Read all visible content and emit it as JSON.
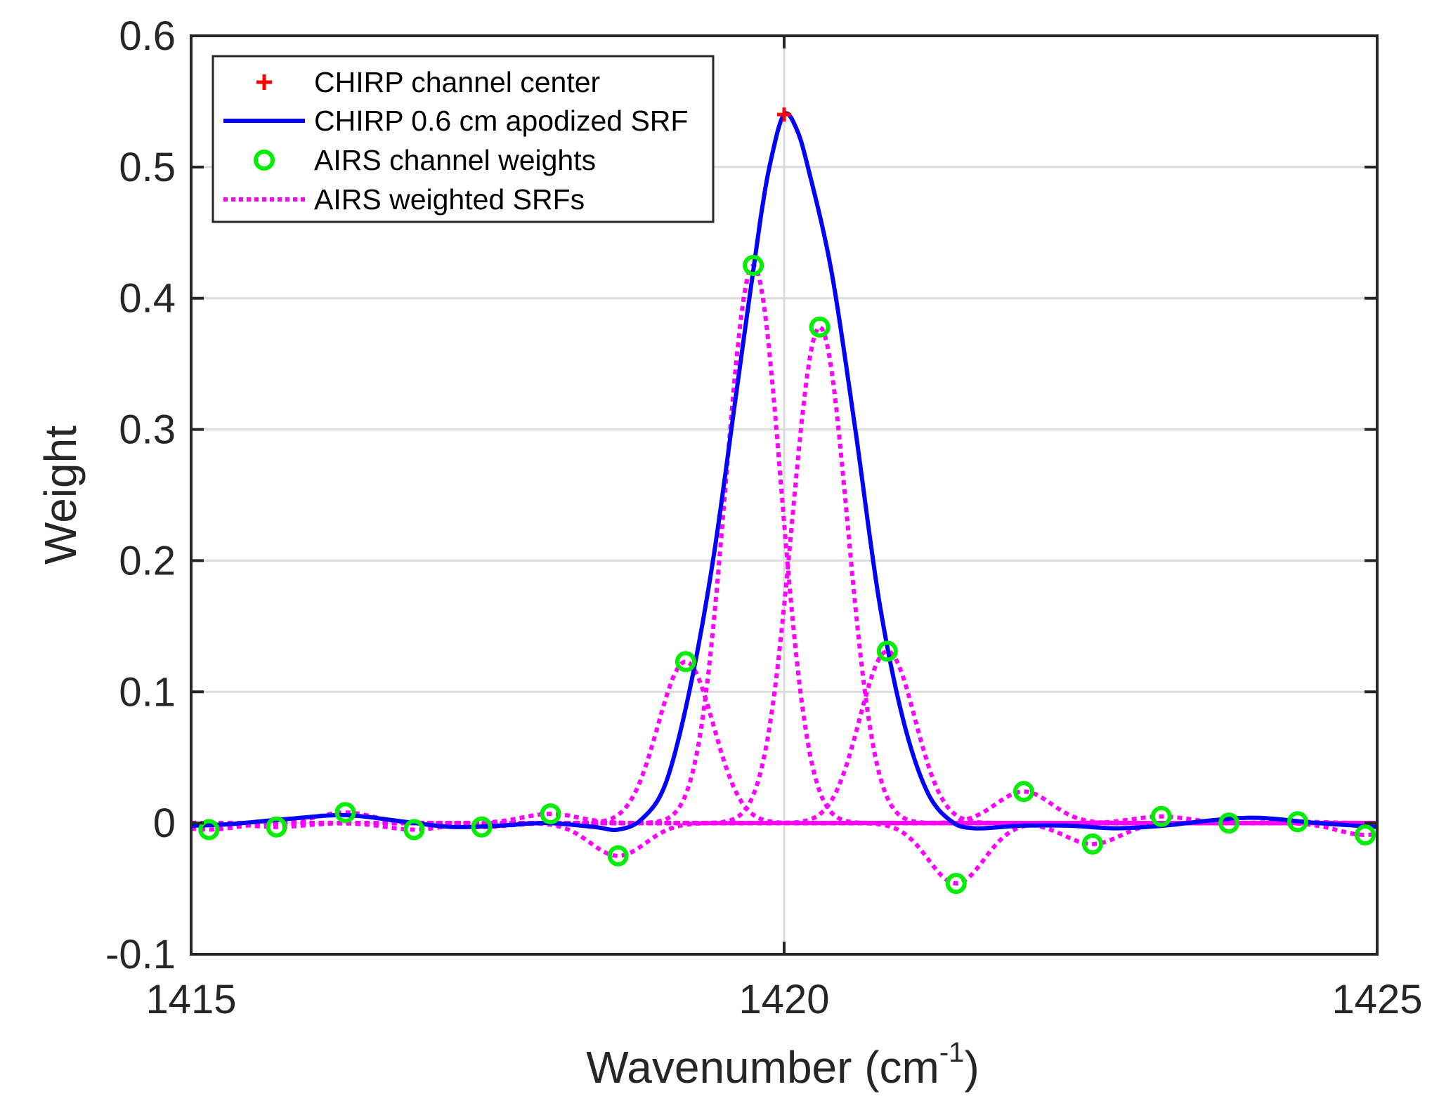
{
  "chart_data": {
    "type": "line",
    "xlabel": "Wavenumber (cm",
    "xlabel_superscript": "-1",
    "xlabel_suffix": ")",
    "ylabel": "Weight",
    "xlim": [
      1415,
      1425
    ],
    "ylim": [
      -0.1,
      0.6
    ],
    "xticks": [
      1415,
      1420,
      1425
    ],
    "xtick_labels": [
      "1415",
      "1420",
      "1425"
    ],
    "yticks": [
      -0.1,
      0,
      0.1,
      0.2,
      0.3,
      0.4,
      0.5,
      0.6
    ],
    "ytick_labels": [
      "-0.1",
      "0",
      "0.1",
      "0.2",
      "0.3",
      "0.4",
      "0.5",
      "0.6"
    ],
    "grid": true,
    "legend_position": "top-left",
    "legend": [
      {
        "label": "CHIRP channel center",
        "style": "marker-plus",
        "color": "#ff0000"
      },
      {
        "label": "CHIRP 0.6 cm apodized SRF",
        "style": "solid",
        "color": "#0000ff"
      },
      {
        "label": "AIRS channel weights",
        "style": "marker-circle",
        "color": "#00ee00"
      },
      {
        "label": "AIRS weighted SRFs",
        "style": "dotted",
        "color": "#ff00ff"
      }
    ],
    "series": [
      {
        "name": "CHIRP channel center",
        "type": "marker",
        "color": "#ff0000",
        "points": [
          [
            1420.0,
            0.54
          ]
        ]
      },
      {
        "name": "CHIRP 0.6 cm apodized SRF",
        "type": "line",
        "color": "#0000ff",
        "points": [
          [
            1415.0,
            -0.002
          ],
          [
            1415.3,
            -0.001
          ],
          [
            1415.8,
            0.003
          ],
          [
            1416.3,
            0.006
          ],
          [
            1416.8,
            0.001
          ],
          [
            1417.2,
            -0.003
          ],
          [
            1417.6,
            -0.002
          ],
          [
            1418.0,
            0.0
          ],
          [
            1418.4,
            -0.003
          ],
          [
            1418.6,
            -0.005
          ],
          [
            1418.8,
            0.003
          ],
          [
            1419.0,
            0.03
          ],
          [
            1419.2,
            0.1
          ],
          [
            1419.4,
            0.2
          ],
          [
            1419.6,
            0.33
          ],
          [
            1419.8,
            0.46
          ],
          [
            1419.9,
            0.51
          ],
          [
            1420.0,
            0.54
          ],
          [
            1420.1,
            0.53
          ],
          [
            1420.2,
            0.5
          ],
          [
            1420.4,
            0.42
          ],
          [
            1420.6,
            0.3
          ],
          [
            1420.8,
            0.17
          ],
          [
            1421.0,
            0.08
          ],
          [
            1421.2,
            0.025
          ],
          [
            1421.4,
            0.002
          ],
          [
            1421.6,
            -0.004
          ],
          [
            1422.0,
            -0.002
          ],
          [
            1422.4,
            -0.002
          ],
          [
            1422.8,
            -0.004
          ],
          [
            1423.2,
            -0.002
          ],
          [
            1423.6,
            0.002
          ],
          [
            1424.0,
            0.004
          ],
          [
            1424.5,
            0.0
          ],
          [
            1425.0,
            -0.003
          ]
        ]
      },
      {
        "name": "AIRS channel weights",
        "type": "scatter",
        "color": "#00ee00",
        "points": [
          [
            1415.15,
            -0.005
          ],
          [
            1415.72,
            -0.003
          ],
          [
            1416.3,
            0.008
          ],
          [
            1416.88,
            -0.005
          ],
          [
            1417.45,
            -0.003
          ],
          [
            1418.03,
            0.007
          ],
          [
            1418.6,
            -0.025
          ],
          [
            1419.17,
            0.123
          ],
          [
            1419.74,
            0.425
          ],
          [
            1420.3,
            0.378
          ],
          [
            1420.87,
            0.131
          ],
          [
            1421.45,
            -0.046
          ],
          [
            1422.02,
            0.024
          ],
          [
            1422.6,
            -0.016
          ],
          [
            1423.18,
            0.005
          ],
          [
            1423.75,
            0.0
          ],
          [
            1424.33,
            0.001
          ],
          [
            1424.9,
            -0.009
          ]
        ]
      },
      {
        "name": "AIRS weighted SRFs",
        "type": "dotted-peaks",
        "color": "#ff00ff",
        "peaks": [
          {
            "center": 1415.15,
            "weight": -0.005
          },
          {
            "center": 1415.72,
            "weight": -0.003
          },
          {
            "center": 1416.3,
            "weight": 0.008
          },
          {
            "center": 1416.88,
            "weight": -0.005
          },
          {
            "center": 1417.45,
            "weight": -0.003
          },
          {
            "center": 1418.03,
            "weight": 0.007
          },
          {
            "center": 1418.6,
            "weight": -0.025
          },
          {
            "center": 1419.17,
            "weight": 0.123
          },
          {
            "center": 1419.74,
            "weight": 0.425
          },
          {
            "center": 1420.3,
            "weight": 0.378
          },
          {
            "center": 1420.87,
            "weight": 0.131
          },
          {
            "center": 1421.45,
            "weight": -0.046
          },
          {
            "center": 1422.02,
            "weight": 0.024
          },
          {
            "center": 1422.6,
            "weight": -0.016
          },
          {
            "center": 1423.18,
            "weight": 0.005
          },
          {
            "center": 1423.75,
            "weight": 0.0
          },
          {
            "center": 1424.33,
            "weight": 0.001
          },
          {
            "center": 1424.9,
            "weight": -0.009
          }
        ],
        "srf_fwhm": 0.55
      }
    ]
  }
}
